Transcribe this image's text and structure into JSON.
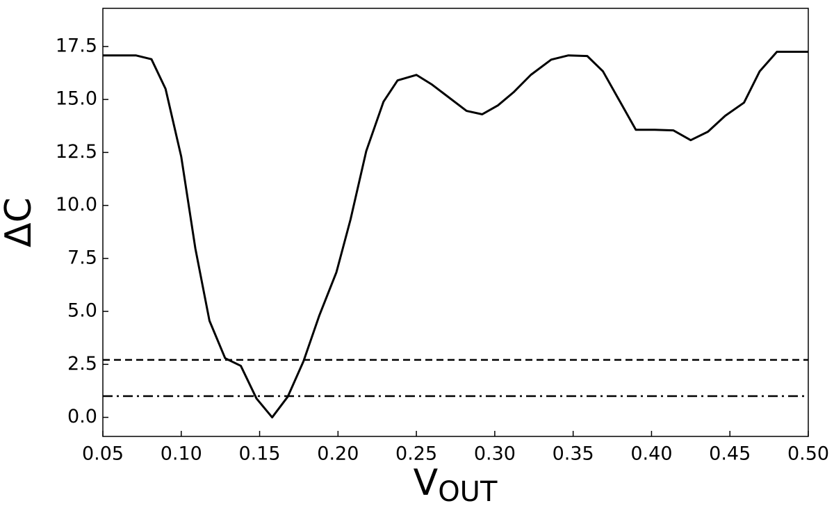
{
  "chart_data": {
    "type": "line",
    "xlabel": "V",
    "xlabel_sub": "OUT",
    "ylabel": "ΔC",
    "x": [
      0.05,
      0.071,
      0.081,
      0.09,
      0.1,
      0.109,
      0.118,
      0.128,
      0.138,
      0.148,
      0.158,
      0.168,
      0.178,
      0.188,
      0.199,
      0.208,
      0.218,
      0.229,
      0.238,
      0.25,
      0.26,
      0.282,
      0.292,
      0.302,
      0.312,
      0.323,
      0.336,
      0.347,
      0.359,
      0.369,
      0.39,
      0.402,
      0.414,
      0.425,
      0.436,
      0.447,
      0.459,
      0.469,
      0.48,
      0.5
    ],
    "series": [
      {
        "color": "#000000",
        "values": [
          17.08,
          17.08,
          16.9,
          15.5,
          12.3,
          7.97,
          4.56,
          2.79,
          2.43,
          0.89,
          0.0,
          0.98,
          2.65,
          4.79,
          6.85,
          9.34,
          12.56,
          14.89,
          15.9,
          16.16,
          15.7,
          14.46,
          14.3,
          14.72,
          15.34,
          16.16,
          16.88,
          17.08,
          17.05,
          16.33,
          13.57,
          13.57,
          13.54,
          13.08,
          13.48,
          14.23,
          14.85,
          16.33,
          17.25,
          17.25
        ]
      }
    ],
    "hlines": [
      {
        "value": 2.71,
        "style": "dashed",
        "color": "#000000"
      },
      {
        "value": 1.0,
        "style": "dashdot",
        "color": "#000000"
      }
    ],
    "xlim": [
      0.05,
      0.5
    ],
    "xticks": [
      0.05,
      {
        "value": 0.1,
        "label": "0.10"
      },
      0.15,
      {
        "value": 0.2,
        "label": "0.20"
      },
      0.25,
      {
        "value": 0.3,
        "label": "0.30"
      },
      0.35,
      {
        "value": 0.4,
        "label": "0.40"
      },
      0.45,
      {
        "value": 0.5,
        "label": "0.50"
      }
    ],
    "ylim": [
      -0.9,
      19.3
    ],
    "yticks": [
      {
        "value": 0,
        "label": "0.0"
      },
      2.5,
      {
        "value": 5,
        "label": "5.0"
      },
      7.5,
      {
        "value": 10,
        "label": "10.0"
      },
      12.5,
      {
        "value": 15,
        "label": "15.0"
      },
      17.5
    ],
    "grid": false
  }
}
